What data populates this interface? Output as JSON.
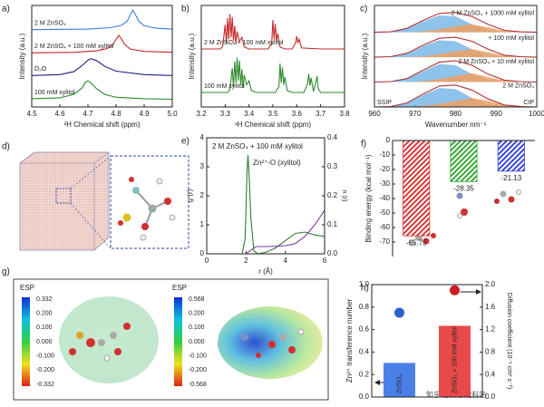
{
  "chart_data": [
    {
      "type": "line",
      "panel_label": "a)",
      "xlabel": "²H Chemical shift (ppm)",
      "ylabel": "Intensity (a.u.)",
      "xlim": [
        4.5,
        5.0
      ],
      "xticks": [
        4.5,
        4.6,
        4.7,
        4.8,
        4.9,
        {
          "value": 5.0,
          "label": "5.0"
        }
      ],
      "ylim": [
        0,
        10.5
      ],
      "series": [
        {
          "name": "2 M ZnSO₄",
          "color": "#3d7be0",
          "x": [
            4.5,
            4.7,
            4.78,
            4.82,
            4.84,
            4.85,
            4.86,
            4.87,
            4.88,
            4.9,
            4.94,
            5.0
          ],
          "values": [
            8.0,
            8.05,
            8.2,
            8.45,
            8.9,
            9.5,
            10.0,
            9.5,
            8.9,
            8.4,
            8.15,
            8.05
          ]
        },
        {
          "name": "2 M ZnSO₄ + 100 mM xylitol",
          "color": "#c62828",
          "x": [
            4.5,
            4.65,
            4.73,
            4.77,
            4.79,
            4.8,
            4.81,
            4.82,
            4.83,
            4.85,
            4.9,
            5.0
          ],
          "values": [
            5.6,
            5.65,
            5.8,
            6.05,
            6.5,
            7.0,
            7.4,
            7.0,
            6.5,
            6.0,
            5.75,
            5.65
          ]
        },
        {
          "name": "D₂O",
          "color": "#1a237e",
          "x": [
            4.5,
            4.6,
            4.65,
            4.68,
            4.7,
            4.71,
            4.73,
            4.76,
            4.8,
            4.9,
            5.0
          ],
          "values": [
            3.25,
            3.35,
            3.65,
            4.3,
            4.85,
            5.0,
            4.8,
            4.2,
            3.7,
            3.35,
            3.25
          ]
        },
        {
          "name": "100 mM xylitol",
          "color": "#2e8b2e",
          "x": [
            4.5,
            4.6,
            4.65,
            4.68,
            4.69,
            4.7,
            4.71,
            4.73,
            4.76,
            4.8,
            4.9,
            5.0
          ],
          "values": [
            0.85,
            0.95,
            1.3,
            2.0,
            2.5,
            2.7,
            2.5,
            1.9,
            1.3,
            1.0,
            0.85,
            0.8
          ]
        }
      ]
    },
    {
      "type": "line",
      "panel_label": "b)",
      "xlabel": "¹H Chemical shift (ppm)",
      "ylabel": "Intensity (a.u.)",
      "xlim": [
        3.2,
        3.8
      ],
      "xticks": [
        3.2,
        3.3,
        3.4,
        3.5,
        3.6,
        3.7,
        3.8
      ],
      "ylim": [
        0,
        10.5
      ],
      "series": [
        {
          "name": "2 M ZnSO₄ + 100 mM xylitol",
          "color": "#c62828",
          "x": [
            3.2,
            3.28,
            3.29,
            3.3,
            3.305,
            3.31,
            3.315,
            3.32,
            3.325,
            3.33,
            3.335,
            3.34,
            3.345,
            3.35,
            3.36,
            3.37,
            3.38,
            3.4,
            3.48,
            3.495,
            3.5,
            3.505,
            3.51,
            3.515,
            3.52,
            3.53,
            3.55,
            3.58,
            3.595,
            3.6,
            3.605,
            3.61,
            3.62,
            3.7,
            3.8
          ],
          "values": [
            6,
            6,
            6.3,
            8.5,
            6.6,
            9.2,
            7,
            9.6,
            7.2,
            9.3,
            6.8,
            8.4,
            6.5,
            7.8,
            6.8,
            7.2,
            6.2,
            6.0,
            6.0,
            6.6,
            9.0,
            7,
            8.6,
            6.8,
            7.6,
            6.2,
            6.0,
            6.0,
            6.6,
            7.3,
            6.6,
            7.0,
            6.1,
            6.0,
            6.0
          ]
        },
        {
          "name": "100 mM xylitol",
          "color": "#2e8b2e",
          "x": [
            3.2,
            3.31,
            3.32,
            3.33,
            3.335,
            3.34,
            3.345,
            3.35,
            3.355,
            3.36,
            3.365,
            3.37,
            3.375,
            3.38,
            3.39,
            3.4,
            3.41,
            3.43,
            3.51,
            3.525,
            3.53,
            3.535,
            3.54,
            3.545,
            3.55,
            3.56,
            3.58,
            3.63,
            3.645,
            3.65,
            3.655,
            3.66,
            3.67,
            3.68,
            3.685,
            3.69,
            3.7,
            3.8
          ],
          "values": [
            1.5,
            1.5,
            1.8,
            4.0,
            2.1,
            4.7,
            2.5,
            5.1,
            2.7,
            4.8,
            2.3,
            3.9,
            2.0,
            3.3,
            2.3,
            2.7,
            1.7,
            1.5,
            1.5,
            2.1,
            4.5,
            2.5,
            4.1,
            2.3,
            3.1,
            1.7,
            1.5,
            1.5,
            2.4,
            3.4,
            2.2,
            3.0,
            1.6,
            2.6,
            3.2,
            1.9,
            1.5,
            1.5
          ]
        }
      ]
    },
    {
      "type": "line",
      "panel_label": "c)",
      "xlabel": "Wavenumber nm⁻¹",
      "ylabel": "Intensity (a.u.)",
      "xlim": [
        960,
        1000
      ],
      "xticks": [
        960,
        970,
        980,
        990,
        1000
      ],
      "ylim": [
        0,
        10.2
      ],
      "x": [
        960,
        964,
        968,
        972,
        976,
        980,
        984,
        988,
        992,
        996,
        1000
      ],
      "series": [
        {
          "name": "2 M ZnSO₄",
          "color": "#b03030",
          "values": [
            0,
            0.05,
            0.4,
            1.3,
            2.1,
            2.2,
            1.7,
            0.8,
            0.2,
            0.05,
            0
          ]
        },
        {
          "name": "SSIP",
          "color": "#7ab8e8",
          "fill": true,
          "values": [
            0,
            0.05,
            0.4,
            1.2,
            1.9,
            1.8,
            0.9,
            0.25,
            0.05,
            0,
            0
          ]
        },
        {
          "name": "CIP",
          "color": "#f0a060",
          "fill": true,
          "values": [
            0,
            0,
            0,
            0.1,
            0.3,
            0.6,
            0.9,
            0.6,
            0.2,
            0.05,
            0
          ]
        },
        {
          "name": "2 M ZnSO₄ + 10 mM xylitol",
          "color": "#b03030",
          "values": [
            2.5,
            2.55,
            2.85,
            3.7,
            4.5,
            4.65,
            4.2,
            3.3,
            2.7,
            2.55,
            2.5
          ]
        },
        {
          "color": "#7ab8e8",
          "fill": true,
          "values": [
            2.5,
            2.55,
            2.85,
            3.6,
            4.3,
            4.2,
            3.3,
            2.75,
            2.55,
            2.5,
            2.5
          ]
        },
        {
          "color": "#f0a060",
          "fill": true,
          "values": [
            2.5,
            2.5,
            2.5,
            2.6,
            2.8,
            3.1,
            3.4,
            3.0,
            2.65,
            2.55,
            2.5
          ]
        },
        {
          "name": "+ 100 mM xylitol",
          "color": "#b03030",
          "values": [
            5,
            5.05,
            5.4,
            6.2,
            6.9,
            7.0,
            6.6,
            5.8,
            5.2,
            5.05,
            5
          ]
        },
        {
          "color": "#7ab8e8",
          "fill": true,
          "values": [
            5,
            5.05,
            5.35,
            6.1,
            6.7,
            6.6,
            5.8,
            5.25,
            5.05,
            5,
            5
          ]
        },
        {
          "color": "#f0a060",
          "fill": true,
          "values": [
            5,
            5,
            5,
            5.1,
            5.3,
            5.6,
            5.8,
            5.5,
            5.15,
            5.05,
            5
          ]
        },
        {
          "name": "2 M ZnSO₄ + 1000 mM xylitol",
          "color": "#b03030",
          "values": [
            7.5,
            7.55,
            7.9,
            8.7,
            9.4,
            9.5,
            9.1,
            8.3,
            7.7,
            7.55,
            7.5
          ]
        },
        {
          "color": "#7ab8e8",
          "fill": true,
          "values": [
            7.5,
            7.55,
            7.85,
            8.6,
            9.2,
            9.1,
            8.3,
            7.75,
            7.55,
            7.5,
            7.5
          ]
        },
        {
          "color": "#f0a060",
          "fill": true,
          "values": [
            7.5,
            7.5,
            7.5,
            7.6,
            7.8,
            8.1,
            8.3,
            8.0,
            7.65,
            7.55,
            7.5
          ]
        }
      ]
    },
    {
      "type": "line",
      "panel_label": "e)",
      "xlabel": "r (Å)",
      "ylabel": "g (r)",
      "y2label": "n (r)",
      "annotations": [
        {
          "text": "2 M ZnSO₄ + 100 mM xylitol",
          "color": "#c62828"
        },
        {
          "text": "Zn²⁺-O (xylitol)",
          "color": "#222222"
        }
      ],
      "xlim": [
        0,
        6
      ],
      "xticks": [
        0,
        2,
        4,
        6
      ],
      "ylim": [
        0,
        4
      ],
      "yticks": [
        0,
        1,
        2,
        3,
        4
      ],
      "y2lim": [
        0,
        0.4
      ],
      "y2ticks": [
        {
          "value": 0,
          "label": "0.0"
        },
        0.1,
        0.2,
        0.3,
        0.4
      ],
      "series": [
        {
          "color": "#2e7d32",
          "x": [
            0,
            1.5,
            1.8,
            1.95,
            2.0,
            2.05,
            2.1,
            2.15,
            2.25,
            2.4,
            2.6,
            3,
            3.5,
            4,
            4.5,
            5,
            5.5,
            6
          ],
          "values": [
            0,
            0,
            0,
            0.5,
            1.5,
            2.8,
            3.4,
            2.8,
            1.2,
            0.1,
            0,
            0.05,
            0.2,
            0.45,
            0.7,
            0.75,
            0.65,
            0.6
          ]
        },
        {
          "color": "#7b3fa0",
          "axis": "y2",
          "x": [
            0,
            2,
            2.5,
            3,
            3.5,
            4,
            4.5,
            5,
            5.5,
            6
          ],
          "values": [
            0,
            0,
            0.025,
            0.025,
            0.026,
            0.028,
            0.035,
            0.06,
            0.1,
            0.15
          ]
        }
      ]
    },
    {
      "type": "bar",
      "panel_label": "f)",
      "ylabel": "Binding energy (kcal mol⁻¹)",
      "frame": false,
      "hatch": true,
      "data_labels": true,
      "categories": [
        null,
        null,
        null
      ],
      "values": [
        -65.75,
        -28.35,
        -21.13
      ],
      "colors": [
        "#d63a3a",
        "#3aa83a",
        "#3a4ad6"
      ],
      "ylim": [
        -80,
        0
      ],
      "yticks": [
        0,
        -10,
        -20,
        -30,
        -40,
        -50,
        -60,
        -70
      ]
    },
    {
      "type": "bar",
      "panel_label": "h)",
      "ylabel": "Zn²⁺ transference number",
      "y2label": "Diffusion coefficient (10⁻⁶ cm² s⁻¹)",
      "categories": [
        "ZnSO₄",
        "ZnSO₄ + 100 mM xylitol"
      ],
      "series": [
        {
          "type": "bar",
          "colors": [
            "#4a7fe8",
            "#e84a4a"
          ],
          "values": [
            0.3,
            0.63
          ]
        },
        {
          "type": "scatter",
          "axis": "y2",
          "colors": [
            "#2a5fd0",
            "#cc1f1f"
          ],
          "values": [
            1.5,
            1.9
          ]
        }
      ],
      "ylim": [
        0,
        1.0
      ],
      "yticks": [
        {
          "value": 0,
          "label": "0.0"
        },
        0.2,
        0.4,
        0.6,
        0.8,
        {
          "value": 1.0,
          "label": "1.0"
        }
      ],
      "y2lim": [
        0,
        2.0
      ],
      "y2ticks": [
        {
          "value": 0,
          "label": "0.0"
        },
        0.4,
        0.8,
        1.2,
        1.6,
        {
          "value": 2.0,
          "label": "2.0"
        }
      ]
    }
  ],
  "figure": {
    "d": {
      "panel_label": "d)"
    },
    "g": {
      "panel_label": "g)",
      "colorbars": [
        {
          "title": "ESP",
          "ticks": [
            "0.332",
            "0.200",
            "0.100",
            "0.000",
            "-0.100",
            "-0.200",
            "-0.332"
          ]
        },
        {
          "title": "ESP",
          "ticks": [
            "0.568",
            "0.200",
            "0.100",
            "0.000",
            "-0.100",
            "-0.200",
            "-0.568"
          ]
        }
      ]
    },
    "watermark": "知乎 @科学材料站"
  }
}
